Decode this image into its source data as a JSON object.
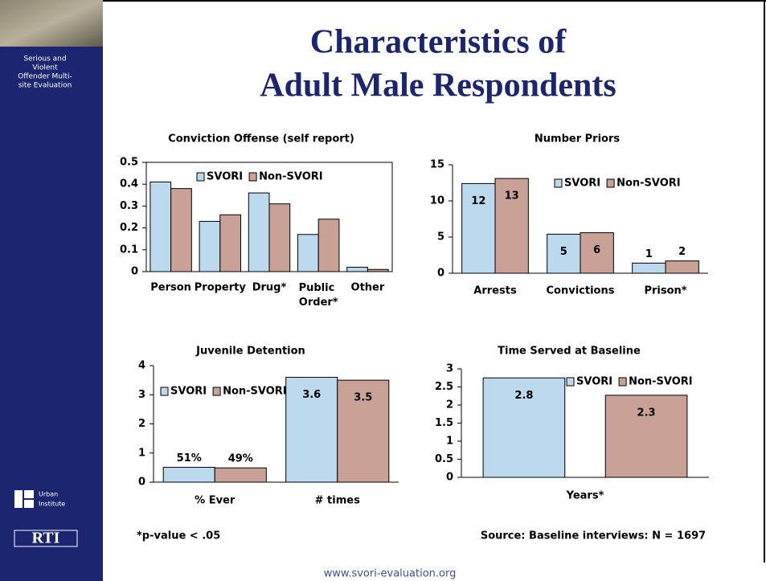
{
  "slide": {
    "title": [
      "Characteristics of",
      "Adult Male Respondents"
    ],
    "sidebar_caption": [
      "Serious and",
      "Violent",
      "Offender Multi-",
      "site Evaluation"
    ],
    "logo_urban": [
      "Urban",
      "Institute"
    ],
    "logo_rti": "RTI",
    "footnote": "*p-value < .05",
    "source": "Source: Baseline interviews: N = 1697",
    "url": "www.svori-evaluation.org"
  },
  "chart_data": [
    {
      "type": "bar",
      "title": "Conviction Offense (self report)",
      "frame": true,
      "legend": "top",
      "categories": [
        "Person",
        "Property",
        "Drug*",
        "Public Order*",
        "Other"
      ],
      "series": [
        {
          "name": "SVORI",
          "color": "#bcd9ee",
          "values": [
            0.41,
            0.23,
            0.36,
            0.17,
            0.02
          ]
        },
        {
          "name": "Non-SVORI",
          "color": "#c9a196",
          "values": [
            0.38,
            0.26,
            0.31,
            0.24,
            0.01
          ]
        }
      ],
      "ylim": [
        0,
        0.5
      ],
      "yticks": [
        0,
        0.1,
        0.2,
        0.3,
        0.4,
        0.5
      ]
    },
    {
      "type": "bar",
      "title": "Number Priors",
      "legend": "top right",
      "categories": [
        "Arrests",
        "Convictions",
        "Prison*"
      ],
      "series": [
        {
          "name": "SVORI",
          "color": "#bcd9ee",
          "values": [
            12.4,
            5.4,
            1.4
          ],
          "value_labels": [
            "12",
            "5",
            "1"
          ]
        },
        {
          "name": "Non-SVORI",
          "color": "#c9a196",
          "values": [
            13.1,
            5.6,
            1.7
          ],
          "value_labels": [
            "13",
            "6",
            "2"
          ]
        }
      ],
      "ylim": [
        0,
        15
      ],
      "yticks": [
        0,
        5,
        10,
        15
      ]
    },
    {
      "type": "bar",
      "title": "Juvenile Detention",
      "legend": "top left",
      "categories": [
        "% Ever",
        "# times"
      ],
      "series": [
        {
          "name": "SVORI",
          "color": "#bcd9ee",
          "values": [
            0.51,
            3.6
          ],
          "value_labels": [
            "51%",
            "3.6"
          ]
        },
        {
          "name": "Non-SVORI",
          "color": "#c9a196",
          "values": [
            0.49,
            3.5
          ],
          "value_labels": [
            "49%",
            "3.5"
          ]
        }
      ],
      "ylim": [
        0,
        4
      ],
      "yticks": [
        0,
        1,
        2,
        3,
        4
      ]
    },
    {
      "type": "bar",
      "title": "Time Served at Baseline",
      "legend": "top right",
      "categories": [
        "Years*"
      ],
      "series": [
        {
          "name": "SVORI",
          "color": "#bcd9ee",
          "values": [
            2.75
          ],
          "value_labels": [
            "2.8"
          ]
        },
        {
          "name": "Non-SVORI",
          "color": "#c9a196",
          "values": [
            2.27
          ],
          "value_labels": [
            "2.3"
          ]
        }
      ],
      "ylim": [
        0,
        3
      ],
      "yticks": [
        0,
        0.5,
        1,
        1.5,
        2,
        2.5,
        3
      ]
    }
  ]
}
